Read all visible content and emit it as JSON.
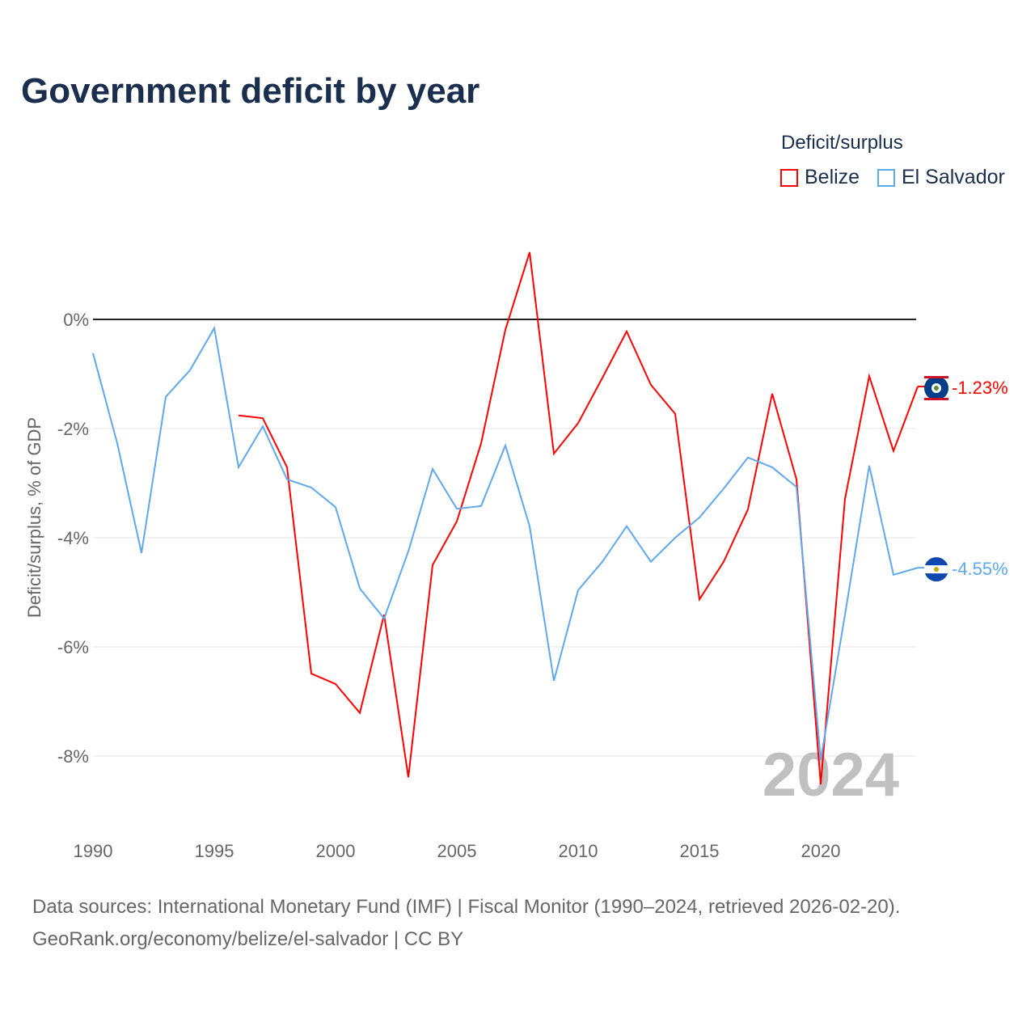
{
  "title": "Government deficit by year",
  "legend": {
    "title": "Deficit/surplus",
    "items": [
      {
        "label": "Belize",
        "color": "#ff0000"
      },
      {
        "label": "El Salvador",
        "color": "#5fa8ee"
      }
    ]
  },
  "sources": [
    "Data sources: International Monetary Fund (IMF) | Fiscal Monitor (1990–2024, retrieved 2026-02-20).",
    "GeoRank.org/economy/belize/el-salvador | CC BY"
  ],
  "chart_data": {
    "type": "line",
    "title": "Government deficit by year",
    "xlabel": "",
    "ylabel": "Deficit/surplus, % of GDP",
    "xlim": [
      1990,
      2024
    ],
    "ylim": [
      -9.3,
      1.8
    ],
    "x_ticks": [
      1990,
      1995,
      2000,
      2005,
      2010,
      2015,
      2020
    ],
    "y_ticks": [
      {
        "v": 0,
        "label": "0%"
      },
      {
        "v": -2,
        "label": "-2%"
      },
      {
        "v": -4,
        "label": "-4%"
      },
      {
        "v": -6,
        "label": "-6%"
      },
      {
        "v": -8,
        "label": "-8%"
      }
    ],
    "year_watermark": "2024",
    "series": [
      {
        "name": "Belize",
        "color": "#ff0000",
        "end_label": "-1.23%",
        "x": [
          1996,
          1997,
          1998,
          1999,
          2000,
          2001,
          2002,
          2003,
          2004,
          2005,
          2006,
          2007,
          2008,
          2009,
          2010,
          2011,
          2012,
          2013,
          2014,
          2015,
          2016,
          2017,
          2018,
          2019,
          2020,
          2021,
          2022,
          2023,
          2024
        ],
        "values": [
          -1.76,
          -1.81,
          -2.71,
          -6.49,
          -6.68,
          -7.21,
          -5.41,
          -8.39,
          -4.5,
          -3.7,
          -2.27,
          -0.19,
          1.23,
          -2.46,
          -1.9,
          -1.07,
          -0.22,
          -1.2,
          -1.73,
          -5.13,
          -4.44,
          -3.48,
          -1.36,
          -2.93,
          -8.52,
          -3.29,
          -1.04,
          -2.41,
          -1.23
        ]
      },
      {
        "name": "El Salvador",
        "color": "#5fa8ee",
        "end_label": "-4.55%",
        "x": [
          1990,
          1991,
          1992,
          1993,
          1994,
          1995,
          1996,
          1997,
          1998,
          1999,
          2000,
          2001,
          2002,
          2003,
          2004,
          2005,
          2006,
          2007,
          2008,
          2009,
          2010,
          2011,
          2012,
          2013,
          2014,
          2015,
          2016,
          2017,
          2018,
          2019,
          2020,
          2021,
          2022,
          2023,
          2024
        ],
        "values": [
          -0.62,
          -2.27,
          -4.28,
          -1.42,
          -0.93,
          -0.16,
          -2.71,
          -1.96,
          -2.93,
          -3.08,
          -3.44,
          -4.93,
          -5.48,
          -4.25,
          -2.74,
          -3.47,
          -3.42,
          -2.31,
          -3.79,
          -6.62,
          -4.96,
          -4.44,
          -3.79,
          -4.44,
          -4.0,
          -3.63,
          -3.1,
          -2.53,
          -2.71,
          -3.07,
          -8.07,
          -5.41,
          -2.68,
          -4.68,
          -4.55
        ]
      }
    ]
  }
}
